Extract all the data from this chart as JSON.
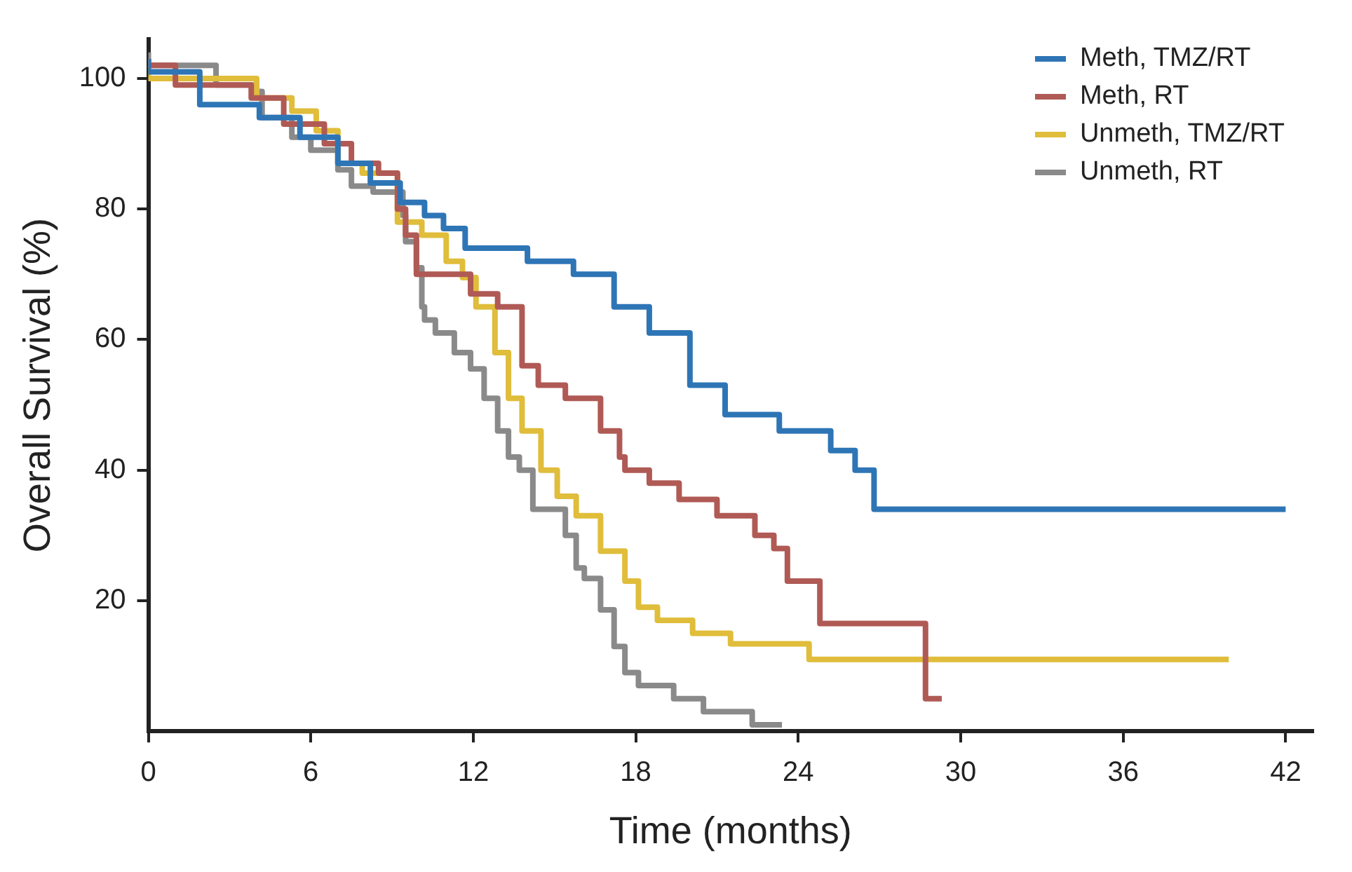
{
  "chart_data": {
    "type": "step",
    "xlabel": "Time (months)",
    "ylabel": "Overall Survival (%)",
    "xlim": [
      0,
      43
    ],
    "ylim": [
      0,
      106
    ],
    "xticks": [
      0,
      6,
      12,
      18,
      24,
      30,
      36,
      42
    ],
    "yticks": [
      20,
      40,
      60,
      80,
      100
    ],
    "grid": false,
    "legend": "top right",
    "marker": "none",
    "line_style": "solid",
    "series": [
      {
        "name": "Meth, TMZ/RT",
        "color": "#2e75b6",
        "x": [
          0,
          1.9,
          4.1,
          5.6,
          7,
          8.2,
          9.3,
          10.2,
          10.9,
          11.7,
          14,
          15.7,
          17.2,
          18.5,
          20,
          21.3,
          23.3,
          25.2,
          26.1,
          26.8,
          32.8,
          42
        ],
        "values": [
          103,
          101,
          96,
          94,
          91,
          87,
          84,
          81,
          79,
          77,
          74,
          72,
          70,
          65,
          61,
          53,
          48.5,
          46,
          43,
          40,
          34,
          34
        ]
      },
      {
        "name": "Meth, RT",
        "color": "#b05a55",
        "x": [
          0,
          1,
          3.8,
          5,
          6.5,
          7.5,
          8.5,
          9.2,
          9.5,
          9.9,
          11.9,
          12.9,
          13.8,
          14.4,
          15.4,
          16.7,
          17.4,
          17.6,
          18.5,
          19.6,
          21,
          22.4,
          23.1,
          23.6,
          24.8,
          28.7,
          28.8,
          29.3
        ],
        "values": [
          103,
          102,
          99,
          97,
          93,
          90,
          87,
          85.5,
          80,
          76,
          70,
          67,
          65,
          56,
          53,
          51,
          46,
          42,
          40,
          38,
          35.5,
          33,
          30,
          28,
          23,
          16.5,
          5,
          5
        ]
      },
      {
        "name": "Unmeth, TMZ/RT",
        "color": "#e0bd3a",
        "x": [
          0,
          4,
          5.3,
          6.2,
          7,
          7.9,
          9.2,
          10.1,
          11,
          11.6,
          12.1,
          12.8,
          13.3,
          13.8,
          14.5,
          15.1,
          15.8,
          16.7,
          17.6,
          18.1,
          18.8,
          20.1,
          21.5,
          24.4,
          28.1,
          39.9
        ],
        "values": [
          103,
          100,
          97,
          95,
          92,
          87,
          85.5,
          78,
          76,
          72,
          69.5,
          65,
          58,
          51,
          46,
          40,
          36,
          33,
          27.6,
          23,
          19,
          17,
          15,
          13.4,
          11,
          11
        ]
      },
      {
        "name": "Unmeth, RT",
        "color": "#8a8a8a",
        "x": [
          0,
          2.5,
          3.9,
          4.2,
          5.3,
          6,
          7,
          7.5,
          8.3,
          9.4,
          9.5,
          9.9,
          10.1,
          10.2,
          10.6,
          11.3,
          11.9,
          12.4,
          12.9,
          13.3,
          13.7,
          14.2,
          15.4,
          15.8,
          16.1,
          16.7,
          17.2,
          17.6,
          18.1,
          19.4,
          20.5,
          22.3,
          22.8,
          23.4
        ],
        "values": [
          104,
          102,
          99,
          98,
          94,
          91,
          89,
          86,
          83.5,
          82.6,
          79,
          75,
          71,
          65,
          63,
          61,
          58,
          55.5,
          51,
          46,
          42,
          40,
          34,
          30,
          25,
          23.4,
          18.6,
          13,
          9,
          7,
          5,
          3,
          1,
          1
        ]
      }
    ]
  }
}
